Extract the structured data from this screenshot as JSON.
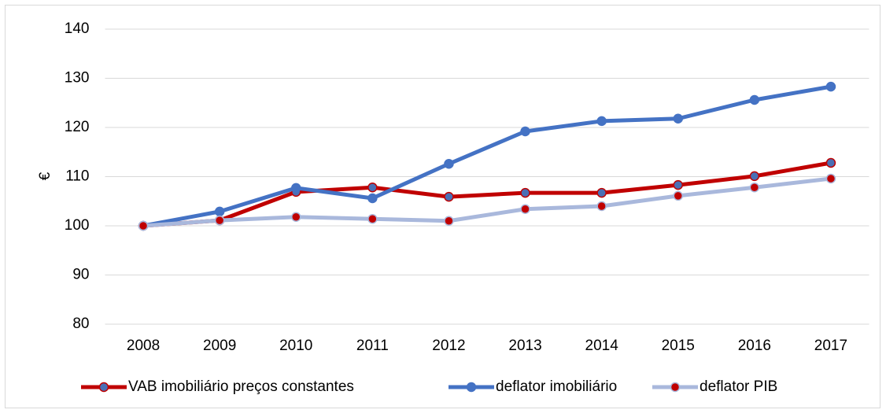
{
  "chart_data": {
    "type": "line",
    "ylabel": "€",
    "categories": [
      "2008",
      "2009",
      "2010",
      "2011",
      "2012",
      "2013",
      "2014",
      "2015",
      "2016",
      "2017"
    ],
    "series": [
      {
        "name": "VAB imobiliário preços constantes",
        "color": "#c00000",
        "marker_color": "#4a6fb5",
        "values": [
          100,
          101.1,
          106.9,
          107.8,
          105.9,
          106.7,
          106.7,
          108.3,
          110.1,
          112.8
        ]
      },
      {
        "name": "deflator imobiliário",
        "color": "#4472c4",
        "marker_color": "#4472c4",
        "values": [
          100,
          102.9,
          107.7,
          105.6,
          112.6,
          119.2,
          121.3,
          121.8,
          125.6,
          128.3
        ]
      },
      {
        "name": "deflator PIB",
        "color": "#a9b8dc",
        "marker_color": "#c00000",
        "values": [
          100,
          101.1,
          101.8,
          101.4,
          101.0,
          103.4,
          104.0,
          106.1,
          107.8,
          109.6
        ]
      }
    ],
    "ylim": [
      80,
      140
    ],
    "yticks": [
      80,
      90,
      100,
      110,
      120,
      130,
      140
    ],
    "grid": true,
    "legend": "bottom"
  }
}
